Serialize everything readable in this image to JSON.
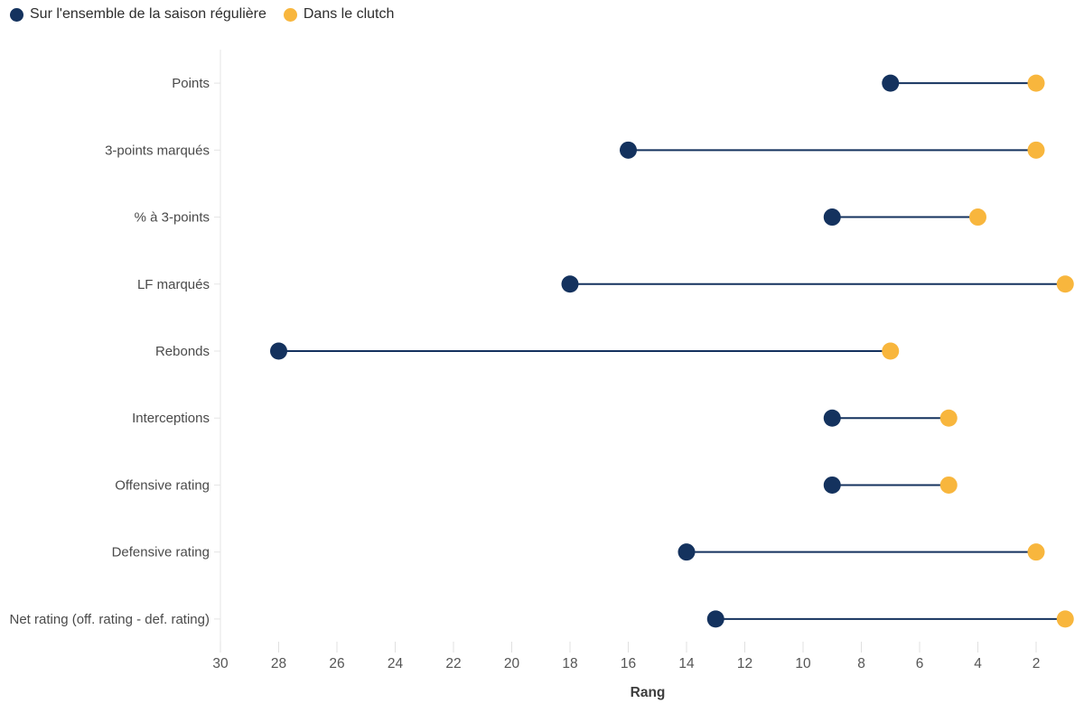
{
  "chart_data": {
    "type": "dumbbell",
    "title": "",
    "xlabel": "Rang",
    "x_axis_reversed": true,
    "x_ticks": [
      30,
      28,
      26,
      24,
      22,
      20,
      18,
      16,
      14,
      12,
      10,
      8,
      6,
      4,
      2
    ],
    "x_range_left_to_right": [
      30.2,
      0.6
    ],
    "grid": false,
    "legend_position": "top-left",
    "categories": [
      "Points",
      "3-points marqués",
      "% à 3-points",
      "LF marqués",
      "Rebonds",
      "Interceptions",
      "Offensive rating",
      "Defensive rating",
      "Net rating (off. rating - def. rating)"
    ],
    "series": [
      {
        "name": "Sur l'ensemble de la saison régulière",
        "color": "#14325E",
        "values": [
          7,
          16,
          9,
          18,
          28,
          9,
          9,
          14,
          13
        ]
      },
      {
        "name": "Dans le clutch",
        "color": "#F8B63D",
        "values": [
          2,
          2,
          4,
          1,
          7,
          5,
          5,
          2,
          1
        ]
      }
    ],
    "colors": {
      "axis_line": "#e4e4e4",
      "tick_mark": "#e0e0e0",
      "tick_label": "#555555",
      "category_label": "#4a4a4a",
      "axis_title": "#3d3d3d",
      "legend_text": "#2d2d2d"
    }
  }
}
